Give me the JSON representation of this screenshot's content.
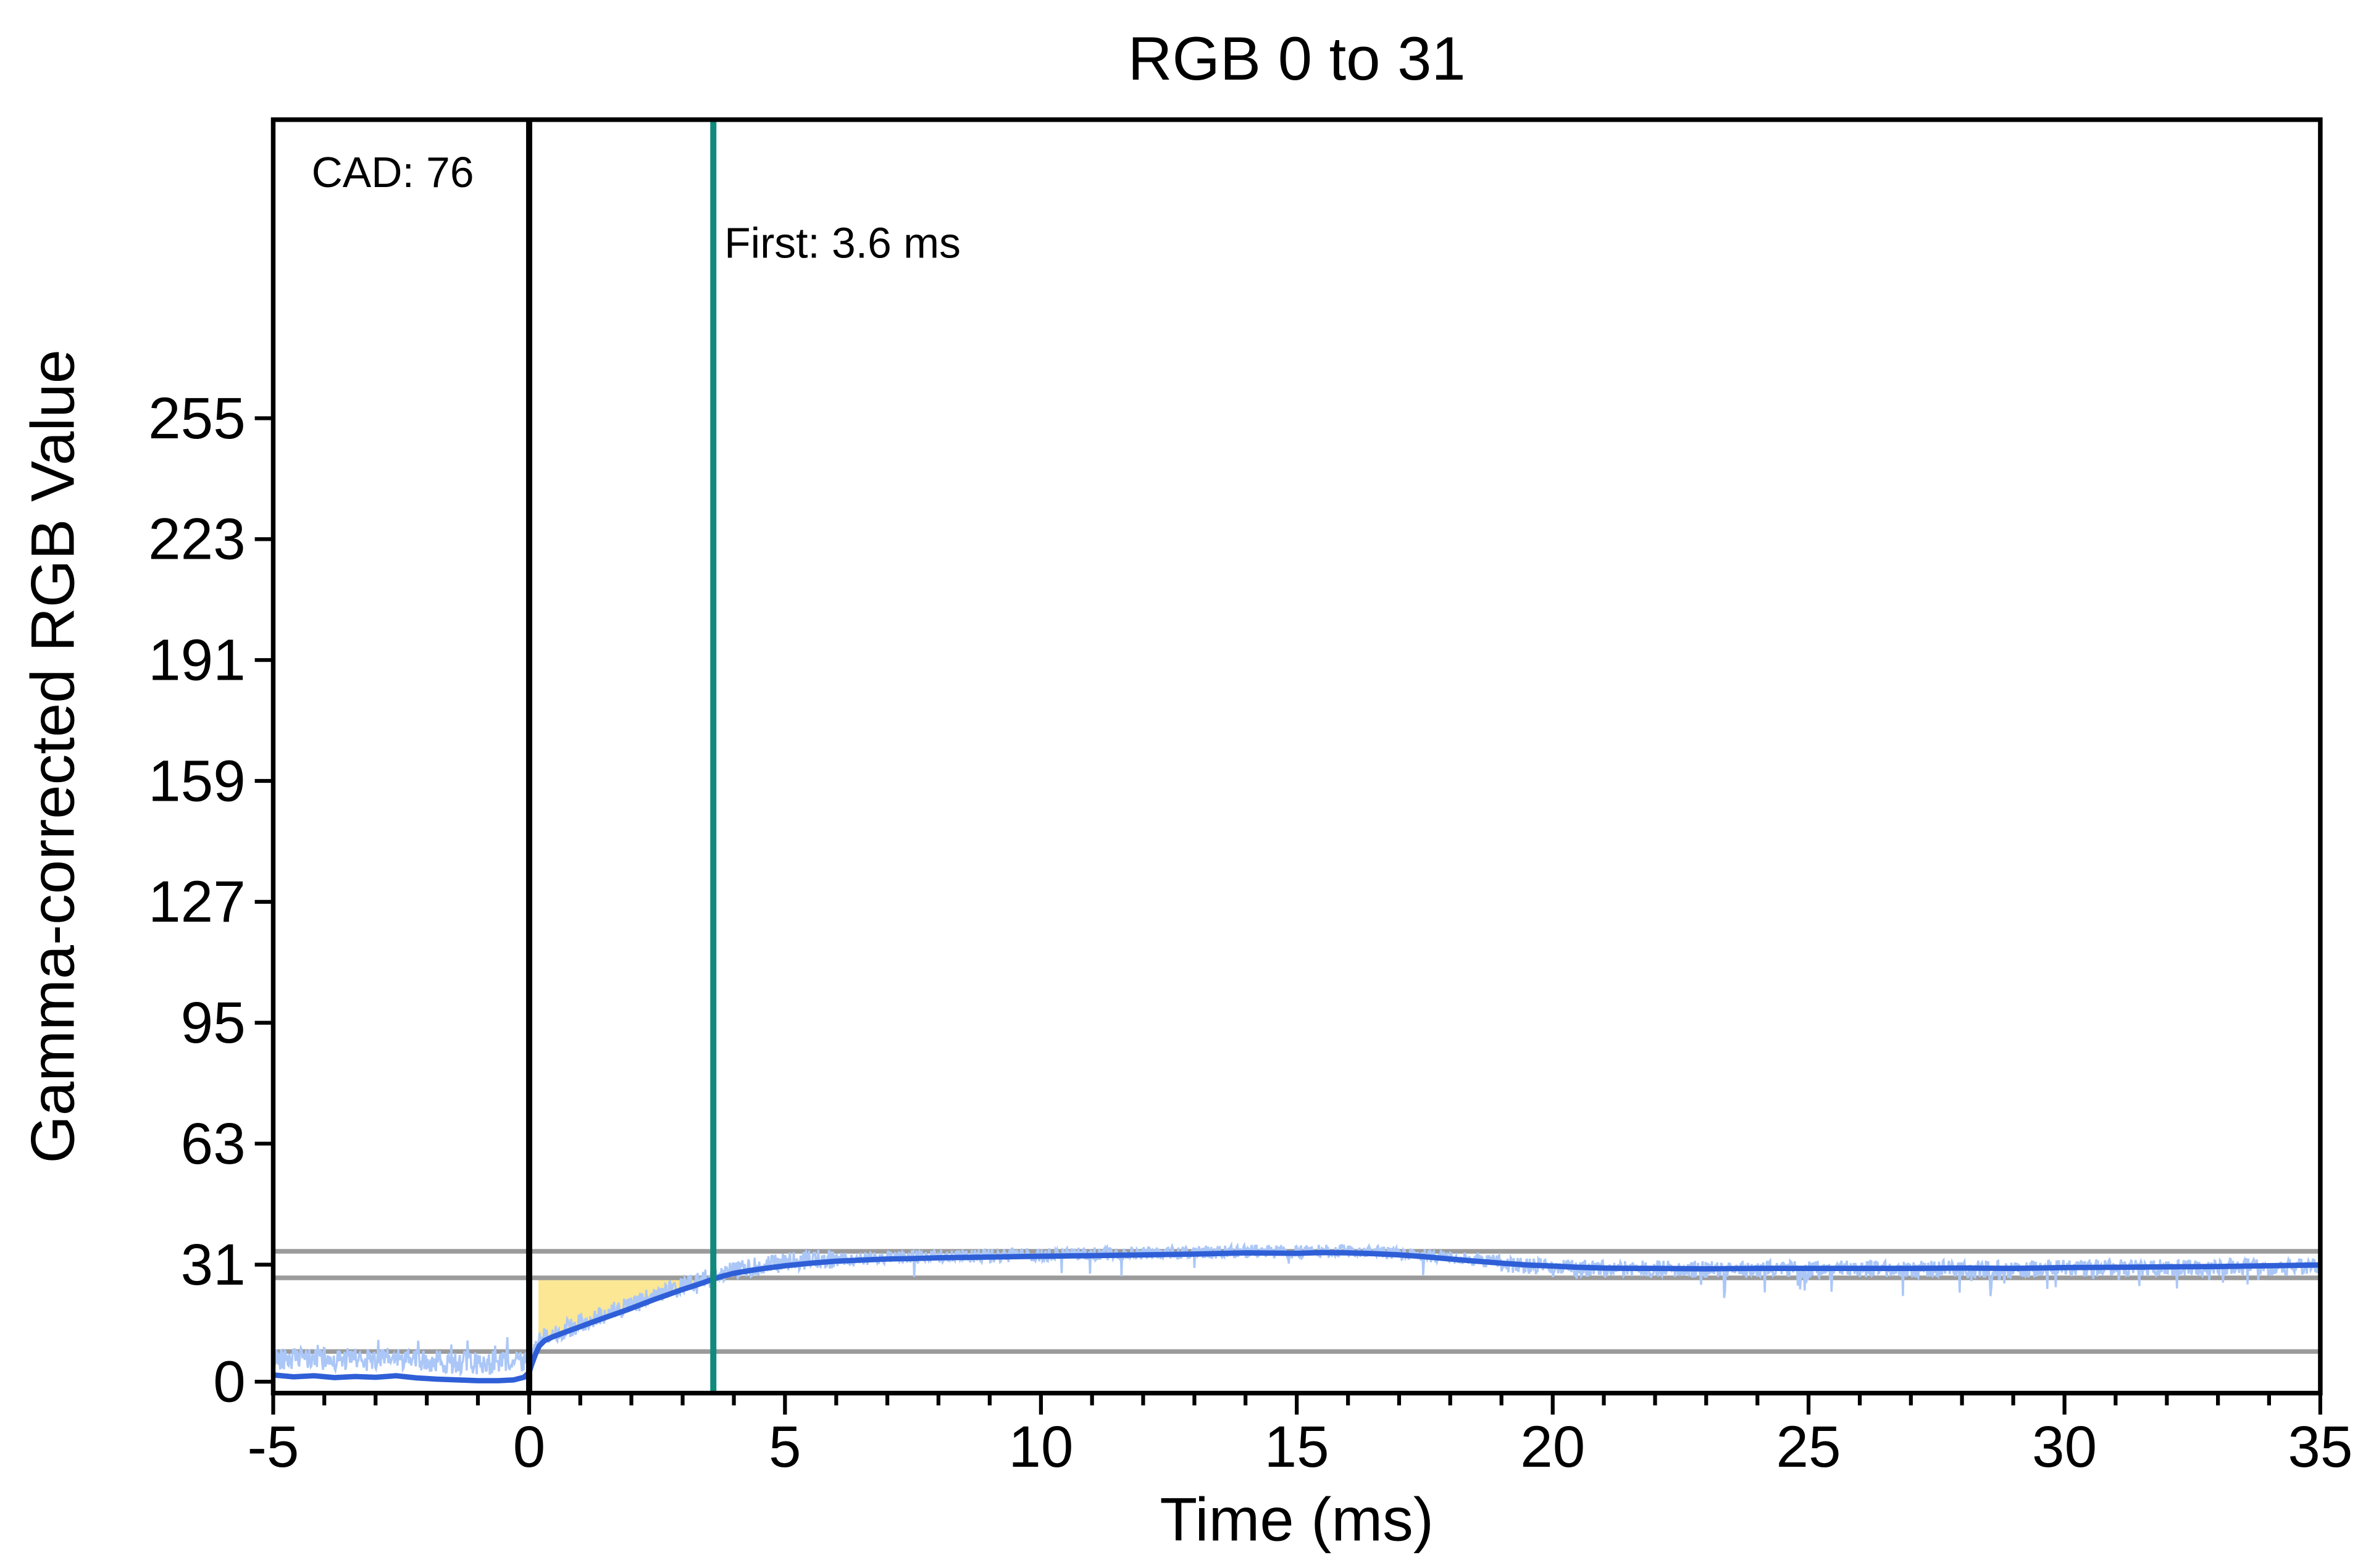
{
  "page": {
    "background": "#ffffff"
  },
  "chart_data": {
    "type": "line",
    "title": "RGB 0 to 31",
    "xlabel": "Time (ms)",
    "ylabel": "Gamma-corrected RGB Value",
    "xlim": [
      -5,
      35
    ],
    "ylim": [
      -3,
      334
    ],
    "x_major_ticks": [
      -5,
      0,
      5,
      10,
      15,
      20,
      25,
      30,
      35
    ],
    "x_minor_step": 1,
    "y_ticks": [
      0,
      31,
      63,
      95,
      127,
      159,
      191,
      223,
      255
    ],
    "grid": false,
    "legend": "none",
    "annotations": [
      {
        "name": "cad-label",
        "text": "CAD: 76",
        "x": -4.25,
        "y": 318
      },
      {
        "name": "first-label",
        "text": "First: 3.6 ms",
        "x": 3.76,
        "y": 299
      }
    ],
    "vlines": [
      {
        "name": "stimulus-start-line",
        "x": 0,
        "color": "#000000",
        "width": 4
      },
      {
        "name": "first-response-line",
        "x": 3.6,
        "color": "#0f8a7d",
        "width": 4
      }
    ],
    "hlines": [
      {
        "y": 34.5
      },
      {
        "y": 27.5
      },
      {
        "y": 8
      }
    ],
    "hline_color": "#9b9b9b",
    "hline_width": 3,
    "response_area": {
      "x0": 0.18,
      "x1": 3.6,
      "top": 27.5,
      "fill": "#fbe488",
      "opacity": 0.9
    },
    "series": {
      "smoothed": {
        "name": "Smoothed response",
        "color": "#2f5fd7",
        "width": 3.5,
        "points": [
          [
            -5,
            1.8
          ],
          [
            -4.6,
            1.3
          ],
          [
            -4.2,
            1.6
          ],
          [
            -3.8,
            1.1
          ],
          [
            -3.4,
            1.4
          ],
          [
            -3,
            1.2
          ],
          [
            -2.6,
            1.6
          ],
          [
            -2.2,
            1.0
          ],
          [
            -1.8,
            0.7
          ],
          [
            -1.4,
            0.5
          ],
          [
            -1,
            0.3
          ],
          [
            -0.6,
            0.3
          ],
          [
            -0.3,
            0.5
          ],
          [
            -0.1,
            1.2
          ],
          [
            0,
            2.5
          ],
          [
            0.05,
            4.5
          ],
          [
            0.12,
            7.2
          ],
          [
            0.2,
            9.5
          ],
          [
            0.3,
            10.9
          ],
          [
            0.45,
            11.8
          ],
          [
            0.6,
            12.6
          ],
          [
            0.8,
            13.6
          ],
          [
            1,
            14.6
          ],
          [
            1.2,
            15.6
          ],
          [
            1.45,
            16.8
          ],
          [
            1.7,
            18
          ],
          [
            1.95,
            19.2
          ],
          [
            2.2,
            20.5
          ],
          [
            2.45,
            21.8
          ],
          [
            2.7,
            23
          ],
          [
            2.95,
            24.2
          ],
          [
            3.2,
            25.3
          ],
          [
            3.4,
            26.2
          ],
          [
            3.6,
            27.2
          ],
          [
            3.8,
            28
          ],
          [
            4,
            28.7
          ],
          [
            4.3,
            29.4
          ],
          [
            4.6,
            30
          ],
          [
            5,
            30.7
          ],
          [
            5.5,
            31.4
          ],
          [
            6,
            31.9
          ],
          [
            6.5,
            32.2
          ],
          [
            7,
            32.5
          ],
          [
            7.5,
            32.6
          ],
          [
            8,
            32.8
          ],
          [
            9,
            33
          ],
          [
            10,
            33.2
          ],
          [
            11,
            33.4
          ],
          [
            12,
            33.6
          ],
          [
            13,
            33.8
          ],
          [
            14,
            34.1
          ],
          [
            15,
            34
          ],
          [
            15.5,
            34.2
          ],
          [
            16,
            34.1
          ],
          [
            16.5,
            33.9
          ],
          [
            17,
            33.6
          ],
          [
            17.5,
            33.1
          ],
          [
            18,
            32.5
          ],
          [
            18.5,
            31.9
          ],
          [
            19,
            31.4
          ],
          [
            19.5,
            30.9
          ],
          [
            20,
            30.6
          ],
          [
            20.5,
            30.3
          ],
          [
            21,
            30.1
          ],
          [
            21.5,
            30
          ],
          [
            22,
            30
          ],
          [
            23,
            29.9
          ],
          [
            24,
            30
          ],
          [
            25,
            30
          ],
          [
            26,
            30
          ],
          [
            27,
            30
          ],
          [
            28,
            30.1
          ],
          [
            29,
            30
          ],
          [
            30,
            30.2
          ],
          [
            31,
            30.3
          ],
          [
            32,
            30.4
          ],
          [
            33,
            30.5
          ],
          [
            34,
            30.7
          ],
          [
            35,
            30.9
          ]
        ]
      },
      "raw": {
        "name": "Raw sensor data",
        "color": "#abc7f7",
        "width": 1.4,
        "sample_step": 0.015,
        "seed": 42,
        "segments": [
          {
            "x0": -5,
            "x1": 0,
            "offset": 4.6,
            "amp": 3.0,
            "spike_prob": 0.05,
            "spike_amp": 6,
            "spike_sign": 1
          },
          {
            "x0": 0,
            "x1": 0.4,
            "offset": 1.5,
            "amp": 2.5,
            "spike_prob": 0.02,
            "spike_amp": 3,
            "spike_sign": 0
          },
          {
            "x0": 0.4,
            "x1": 6,
            "offset": 0.8,
            "amp": 2.6,
            "spike_prob": 0.04,
            "spike_amp": 4,
            "spike_sign": 0
          },
          {
            "x0": 6,
            "x1": 19,
            "offset": 0.4,
            "amp": 1.8,
            "spike_prob": 0.02,
            "spike_amp": 6,
            "spike_sign": -1
          },
          {
            "x0": 19,
            "x1": 35,
            "offset": -0.2,
            "amp": 2.3,
            "spike_prob": 0.06,
            "spike_amp": 6,
            "spike_sign": -1
          }
        ]
      }
    }
  }
}
